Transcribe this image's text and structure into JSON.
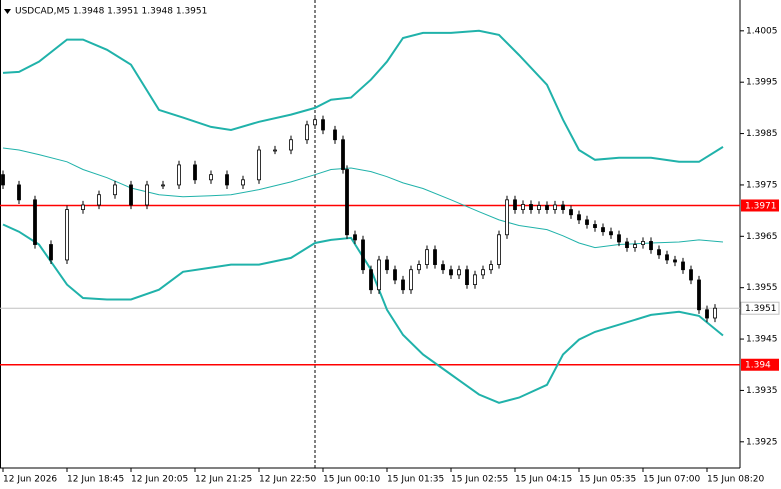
{
  "chart_data": {
    "type": "candlestick",
    "title": "USDCAD,M5  1.3948 1.3951 1.3948 1.3951",
    "xlim": [
      -0.75,
      184.25
    ],
    "ylim": [
      1.39199,
      1.4011
    ],
    "yticks": [
      1.4005,
      1.3995,
      1.3985,
      1.3975,
      1.3965,
      1.3955,
      1.3945,
      1.3935,
      1.3925
    ],
    "xticks": [
      {
        "value": 0,
        "label": "12 Jun 2026"
      },
      {
        "value": 16,
        "label": "12 Jun 18:45"
      },
      {
        "value": 32,
        "label": "12 Jun 20:05"
      },
      {
        "value": 48,
        "label": "12 Jun 21:25"
      },
      {
        "value": 64,
        "label": "12 Jun 22:50"
      },
      {
        "value": 80,
        "label": "15 Jun 00:10"
      },
      {
        "value": 96,
        "label": "15 Jun 01:35"
      },
      {
        "value": 112,
        "label": "15 Jun 02:55"
      },
      {
        "value": 128,
        "label": "15 Jun 04:15"
      },
      {
        "value": 144,
        "label": "15 Jun 05:35"
      },
      {
        "value": 160,
        "label": "15 Jun 07:00"
      },
      {
        "value": 176,
        "label": "15 Jun 08:20"
      }
    ],
    "separator_x": 78,
    "levels": [
      1.3971,
      1.394
    ],
    "level_color": "#ff0000",
    "current_price": 1.3951,
    "candle_color": "#000000",
    "candles": {
      "x": [
        0,
        4,
        8,
        12,
        16,
        20,
        24,
        28,
        32,
        36,
        40,
        44,
        48,
        52,
        56,
        60,
        64,
        68,
        72,
        76,
        78,
        80,
        83,
        85,
        86,
        88,
        90,
        92,
        94,
        96,
        98,
        100,
        102,
        104,
        106,
        108,
        110,
        112,
        114,
        116,
        118,
        120,
        122,
        124,
        126,
        128,
        130,
        132,
        134,
        136,
        138,
        140,
        142,
        144,
        146,
        148,
        150,
        152,
        154,
        156,
        158,
        160,
        162,
        164,
        166,
        168,
        170,
        172,
        174,
        176,
        178
      ],
      "open": [
        1.3977,
        1.3975,
        1.39721,
        1.39634,
        1.39604,
        1.39702,
        1.39711,
        1.39731,
        1.3975,
        1.39711,
        1.3975,
        1.3975,
        1.39789,
        1.3976,
        1.3977,
        1.3975,
        1.3976,
        1.39818,
        1.39818,
        1.39838,
        1.39867,
        1.39877,
        1.39857,
        1.39838,
        1.3978,
        1.39653,
        1.39643,
        1.39585,
        1.39546,
        1.39604,
        1.39585,
        1.39565,
        1.39546,
        1.39585,
        1.39595,
        1.39624,
        1.39595,
        1.39585,
        1.39575,
        1.39585,
        1.39556,
        1.39575,
        1.39585,
        1.39595,
        1.39653,
        1.39721,
        1.39702,
        1.39712,
        1.39702,
        1.3971,
        1.39702,
        1.39711,
        1.39702,
        1.39692,
        1.39682,
        1.39673,
        1.39667,
        1.39659,
        1.39653,
        1.39639,
        1.39628,
        1.39634,
        1.3964,
        1.39624,
        1.39614,
        1.39604,
        1.396,
        1.39585,
        1.39565,
        1.39507,
        1.39491
      ],
      "high": [
        1.39778,
        1.39758,
        1.39729,
        1.39642,
        1.3971,
        1.39719,
        1.39739,
        1.39758,
        1.39758,
        1.39758,
        1.39758,
        1.39797,
        1.39797,
        1.39778,
        1.39778,
        1.39768,
        1.39826,
        1.39826,
        1.39846,
        1.39875,
        1.39885,
        1.39885,
        1.39865,
        1.39846,
        1.39788,
        1.39661,
        1.39651,
        1.39593,
        1.39612,
        1.39612,
        1.39593,
        1.39573,
        1.39593,
        1.39603,
        1.39632,
        1.39632,
        1.39603,
        1.39593,
        1.39593,
        1.39593,
        1.39583,
        1.39593,
        1.39603,
        1.39661,
        1.39729,
        1.39729,
        1.3972,
        1.3972,
        1.39718,
        1.39718,
        1.39719,
        1.39719,
        1.3971,
        1.397,
        1.3969,
        1.39681,
        1.39675,
        1.39667,
        1.39661,
        1.39647,
        1.39642,
        1.39648,
        1.39648,
        1.39632,
        1.39622,
        1.39612,
        1.39608,
        1.39593,
        1.39573,
        1.39515,
        1.39518
      ],
      "low": [
        1.39742,
        1.39713,
        1.39626,
        1.39596,
        1.39596,
        1.39694,
        1.39703,
        1.39723,
        1.39703,
        1.39703,
        1.39742,
        1.39742,
        1.39752,
        1.39752,
        1.39742,
        1.39742,
        1.39752,
        1.3981,
        1.3981,
        1.3983,
        1.39859,
        1.39849,
        1.3983,
        1.39772,
        1.39645,
        1.39635,
        1.39577,
        1.39538,
        1.39538,
        1.39577,
        1.39557,
        1.39538,
        1.39538,
        1.39577,
        1.39587,
        1.39587,
        1.39577,
        1.39567,
        1.39567,
        1.39548,
        1.39548,
        1.39567,
        1.39577,
        1.39587,
        1.39645,
        1.39694,
        1.39694,
        1.39694,
        1.39694,
        1.39694,
        1.39694,
        1.39694,
        1.39684,
        1.39674,
        1.39665,
        1.39659,
        1.39651,
        1.39645,
        1.39631,
        1.3962,
        1.3962,
        1.39626,
        1.39616,
        1.39606,
        1.39596,
        1.39592,
        1.39577,
        1.39557,
        1.39499,
        1.39483,
        1.39483
      ],
      "close": [
        1.3975,
        1.39721,
        1.39634,
        1.39604,
        1.39702,
        1.39711,
        1.39731,
        1.3975,
        1.39711,
        1.3975,
        1.3975,
        1.39789,
        1.3976,
        1.3977,
        1.3975,
        1.3976,
        1.39818,
        1.39818,
        1.39838,
        1.39867,
        1.39877,
        1.39857,
        1.39838,
        1.3978,
        1.39653,
        1.39643,
        1.39585,
        1.39546,
        1.39604,
        1.39585,
        1.39565,
        1.39546,
        1.39585,
        1.39595,
        1.39624,
        1.39595,
        1.39585,
        1.39575,
        1.39585,
        1.39556,
        1.39575,
        1.39585,
        1.39595,
        1.39653,
        1.39721,
        1.39702,
        1.39712,
        1.39702,
        1.3971,
        1.39702,
        1.39711,
        1.39702,
        1.39692,
        1.39682,
        1.39673,
        1.39667,
        1.39659,
        1.39653,
        1.39639,
        1.39628,
        1.39634,
        1.3964,
        1.39624,
        1.39614,
        1.39604,
        1.396,
        1.39585,
        1.39565,
        1.39507,
        1.39491,
        1.3951
      ]
    },
    "bands": {
      "color": "#20b2aa",
      "x": [
        0,
        4,
        9,
        16,
        20,
        26,
        32,
        39,
        45,
        52,
        57,
        64,
        72,
        78,
        82,
        87,
        92,
        96,
        100,
        105,
        112,
        119,
        124,
        129,
        136,
        140,
        144,
        148,
        154,
        162,
        169,
        174,
        180
      ],
      "upper": [
        1.39968,
        1.3997,
        1.3999,
        1.40033,
        1.40033,
        1.40013,
        1.39984,
        1.39896,
        1.39881,
        1.39863,
        1.39857,
        1.39873,
        1.39887,
        1.399,
        1.39916,
        1.3992,
        1.39955,
        1.3999,
        1.40036,
        1.40046,
        1.40046,
        1.4005,
        1.40042,
        1.40003,
        1.39945,
        1.39877,
        1.39818,
        1.39799,
        1.39803,
        1.39803,
        1.39795,
        1.39795,
        1.39824
      ],
      "middle": [
        1.39822,
        1.39818,
        1.39809,
        1.39795,
        1.3978,
        1.39764,
        1.39744,
        1.39731,
        1.39727,
        1.39729,
        1.39731,
        1.39741,
        1.39756,
        1.3977,
        1.3978,
        1.39783,
        1.39776,
        1.39766,
        1.39754,
        1.39743,
        1.39721,
        1.39698,
        1.39682,
        1.39671,
        1.39663,
        1.39651,
        1.39637,
        1.39628,
        1.39634,
        1.39637,
        1.39639,
        1.39643,
        1.39639
      ],
      "lower": [
        1.39673,
        1.39659,
        1.39634,
        1.39556,
        1.3953,
        1.39527,
        1.39527,
        1.39546,
        1.39581,
        1.39589,
        1.39595,
        1.39595,
        1.39608,
        1.39637,
        1.39643,
        1.39647,
        1.39585,
        1.39507,
        1.39458,
        1.3942,
        1.39381,
        1.39342,
        1.39326,
        1.39336,
        1.39361,
        1.3942,
        1.39449,
        1.39464,
        1.39478,
        1.39497,
        1.39503,
        1.39495,
        1.39457
      ]
    }
  }
}
